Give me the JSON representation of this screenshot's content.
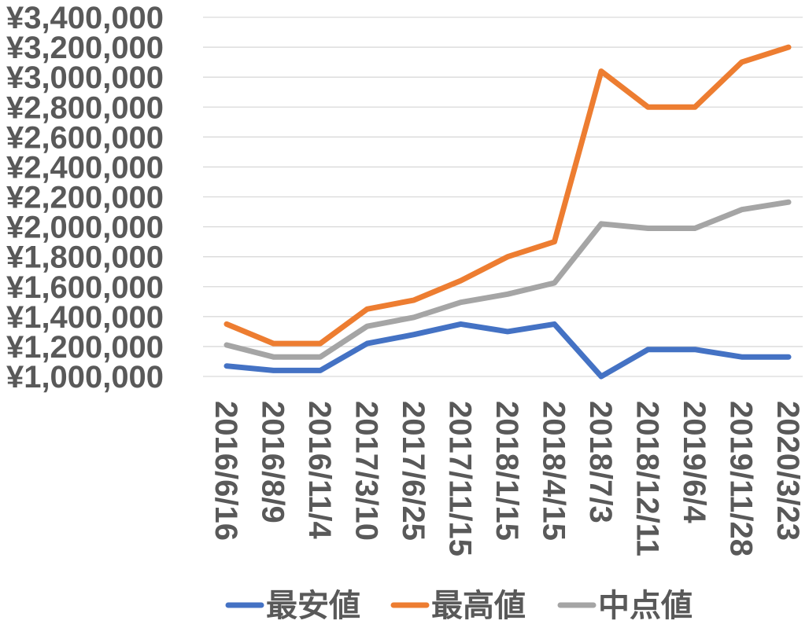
{
  "chart_data": {
    "type": "line",
    "title": "",
    "xlabel": "",
    "ylabel": "",
    "categories": [
      "2016/6/16",
      "2016/8/9",
      "2016/11/4",
      "2017/3/10",
      "2017/6/25",
      "2017/11/15",
      "2018/1/15",
      "2018/4/15",
      "2018/7/3",
      "2018/12/11",
      "2019/6/4",
      "2019/11/28",
      "2020/3/23"
    ],
    "ylim": [
      1000000,
      3400000
    ],
    "ytick_step": 200000,
    "ytick_prefix": "¥",
    "grid": true,
    "legend_position": "bottom",
    "series": [
      {
        "name": "最安値",
        "color": "#4472C4",
        "values": [
          1070000,
          1040000,
          1040000,
          1220000,
          1280000,
          1350000,
          1300000,
          1350000,
          1000000,
          1180000,
          1180000,
          1130000,
          1130000
        ]
      },
      {
        "name": "最高値",
        "color": "#ED7D31",
        "values": [
          1350000,
          1220000,
          1220000,
          1450000,
          1510000,
          1640000,
          1800000,
          1900000,
          3040000,
          2800000,
          2800000,
          3100000,
          3200000
        ]
      },
      {
        "name": "中点値",
        "color": "#A5A5A5",
        "values": [
          1210000,
          1130000,
          1130000,
          1335000,
          1395000,
          1495000,
          1550000,
          1625000,
          2020000,
          1990000,
          1990000,
          2115000,
          2165000
        ]
      }
    ]
  }
}
